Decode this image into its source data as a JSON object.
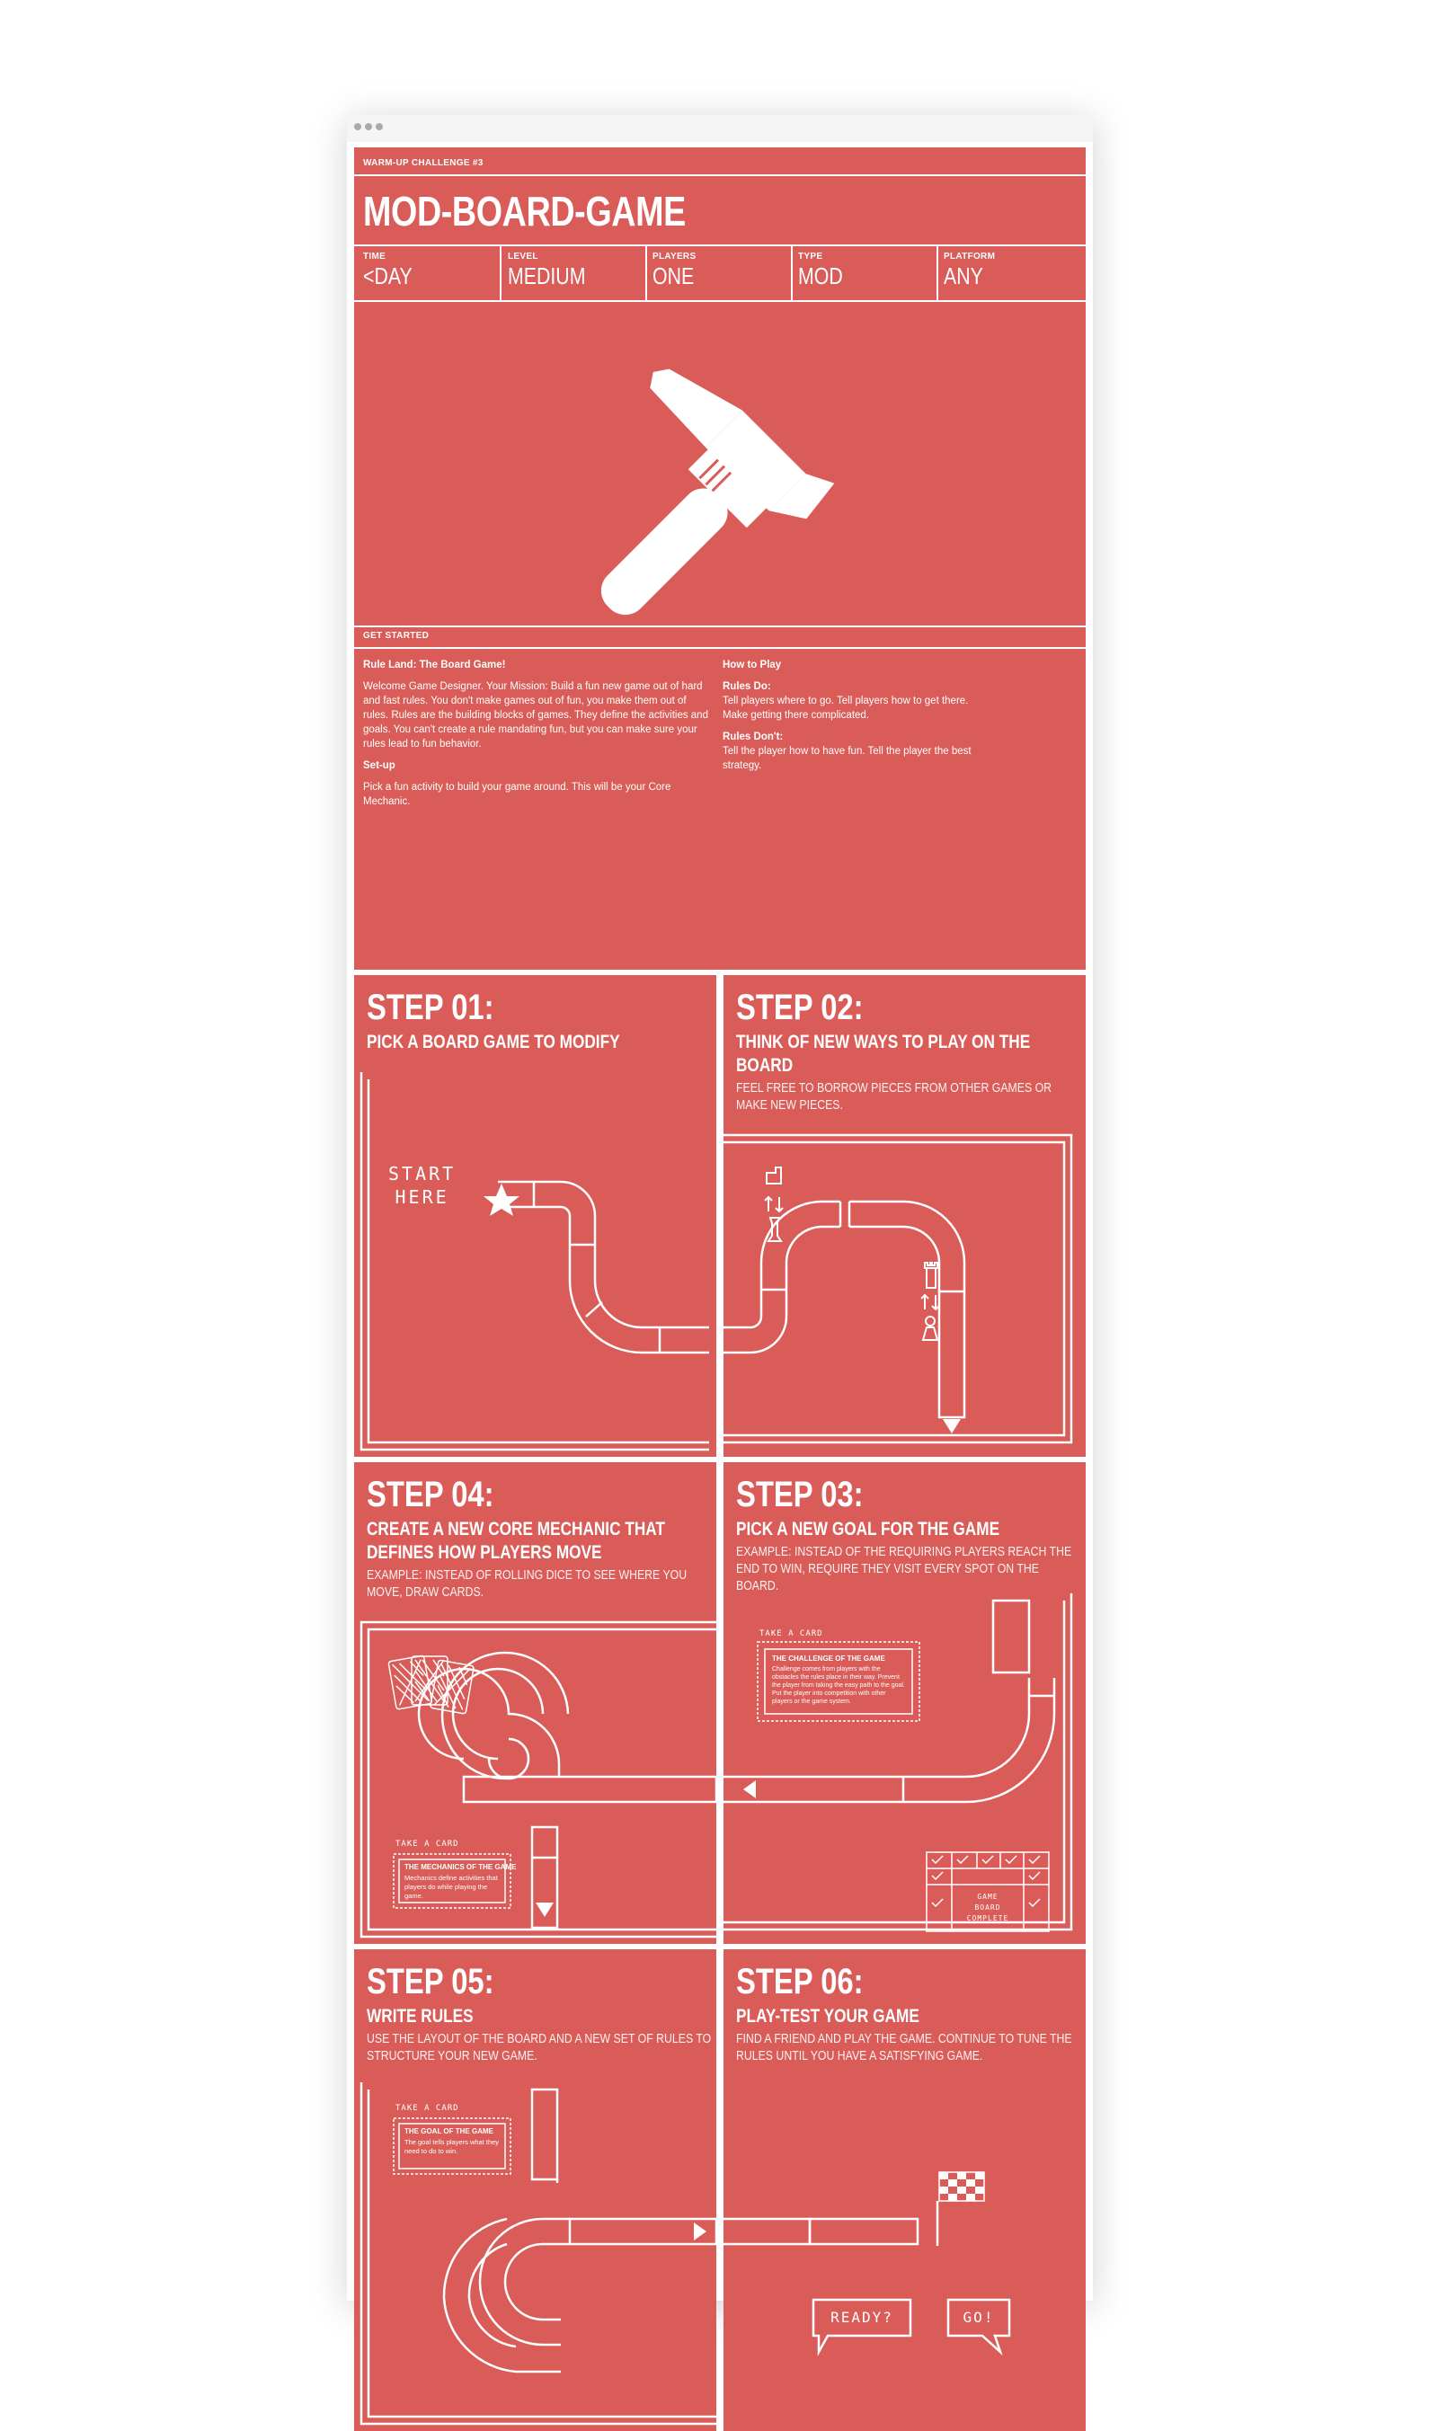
{
  "window": {
    "controls": [
      "dot",
      "dot",
      "dot"
    ]
  },
  "header": {
    "kicker": "WARM-UP CHALLENGE #3",
    "title": "MOD-BOARD-GAME",
    "meta": [
      {
        "label": "TIME",
        "value": "<DAY"
      },
      {
        "label": "LEVEL",
        "value": "MEDIUM"
      },
      {
        "label": "PLAYERS",
        "value": "ONE"
      },
      {
        "label": "TYPE",
        "value": "MOD"
      },
      {
        "label": "PLATFORM",
        "value": "ANY"
      }
    ],
    "hero_icon": "hammer-icon"
  },
  "get_started": {
    "heading": "GET STARTED",
    "left": {
      "title": "Rule Land: The Board Game!",
      "paragraph": "Welcome Game Designer. Your Mission: Build a fun new game out of hard and fast rules. You don't make games out of fun, you make them out of rules. Rules are the building blocks of games. They define the activities and goals. You can't create a rule mandating fun, but you can make sure your rules lead to fun behavior.",
      "setup_title": "Set-up",
      "setup_text": "Pick a fun activity to build your game around. This will be your Core Mechanic."
    },
    "right": {
      "title": "How to Play",
      "dos_title": "Rules Do:",
      "dos_text": "Tell players where to go. Tell players how to get there. Make getting there complicated.",
      "donts_title": "Rules Don't:",
      "donts_text": "Tell the player how to have fun. Tell the player the best strategy."
    }
  },
  "steps": {
    "s01": {
      "title": "STEP 01:",
      "subtitle": "PICK A BOARD GAME TO MODIFY",
      "start_label_1": "START",
      "start_label_2": "HERE"
    },
    "s02": {
      "title": "STEP 02:",
      "subtitle": "THINK OF NEW WAYS TO PLAY ON THE BOARD",
      "desc": "FEEL FREE TO BORROW PIECES FROM OTHER GAMES OR MAKE NEW PIECES."
    },
    "s04": {
      "title": "STEP 04:",
      "subtitle": "CREATE A NEW CORE MECHANIC THAT DEFINES HOW PLAYERS MOVE",
      "desc": "EXAMPLE: INSTEAD OF ROLLING DICE TO SEE WHERE YOU MOVE, DRAW CARDS.",
      "card_caption": "TAKE A CARD",
      "card_title": "THE MECHANICS OF THE GAME",
      "card_text": "Mechanics define activities that players do while playing the game."
    },
    "s03": {
      "title": "STEP 03:",
      "subtitle": "PICK A NEW GOAL FOR THE GAME",
      "desc": "EXAMPLE: INSTEAD OF THE REQUIRING PLAYERS REACH THE END TO WIN, REQUIRE THEY VISIT EVERY SPOT ON THE BOARD.",
      "card_caption": "TAKE A CARD",
      "card_title": "THE CHALLENGE OF THE GAME",
      "card_text": "Challenge comes from players with the obstacles the rules place in their way. Prevent the player from taking the easy path to the goal. Put the player into competition with other players or the game system.",
      "complete_1": "GAME",
      "complete_2": "BOARD",
      "complete_3": "COMPLETE"
    },
    "s05": {
      "title": "STEP 05:",
      "subtitle": "WRITE RULES",
      "desc": "USE THE LAYOUT OF THE BOARD AND A NEW SET OF RULES TO STRUCTURE YOUR NEW GAME.",
      "card_caption": "TAKE A CARD",
      "card_title": "THE GOAL OF THE GAME",
      "card_text": "The goal tells players what they need to do to win."
    },
    "s06": {
      "title": "STEP 06:",
      "subtitle": "PLAY-TEST YOUR GAME",
      "desc": "FIND A FRIEND AND PLAY THE GAME. CONTINUE TO TUNE THE RULES UNTIL YOU HAVE A SATISFYING GAME.",
      "bubble_1": "READY?",
      "bubble_2": "GO!"
    }
  },
  "colors": {
    "board": "#d95c58",
    "ink": "#ffffff"
  }
}
